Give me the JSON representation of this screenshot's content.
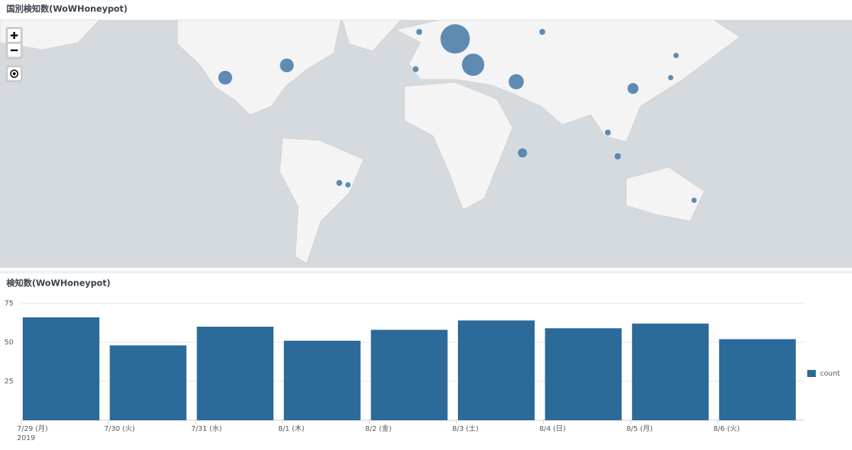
{
  "chart_data": [
    {
      "type": "bubble-map",
      "title": "国別検知数(WoWHoneypot)",
      "lon": [
        19,
        29,
        -1,
        -3,
        67.5,
        53,
        142,
        139,
        118,
        104,
        109.5,
        56.5,
        -45.5,
        -40.7,
        152,
        -109,
        -74.7
      ],
      "lat": [
        51.5,
        41,
        54,
        39,
        54,
        33,
        45,
        35,
        29.6,
        5,
        -9,
        -7,
        -24,
        -25,
        -33,
        35,
        40.7
      ],
      "values": [
        110,
        64,
        5,
        5,
        5,
        30,
        4,
        4,
        16,
        5,
        6,
        12,
        5,
        4,
        4,
        25,
        25
      ],
      "color": "#4f7fab"
    },
    {
      "type": "bar",
      "title": "検知数(WoWHoneypot)",
      "categories": [
        "7/29 (月)",
        "7/30 (火)",
        "7/31 (水)",
        "8/1 (木)",
        "8/2 (金)",
        "8/3 (土)",
        "8/4 (日)",
        "8/5 (月)",
        "8/6 (火)"
      ],
      "year": "2019",
      "series": [
        {
          "name": "count",
          "color": "#2b6a99",
          "values": [
            66,
            48,
            60,
            51,
            58,
            64,
            59,
            62,
            52
          ]
        }
      ],
      "ylim": [
        0,
        75
      ],
      "yticks": [
        25,
        50,
        75
      ],
      "grid": true,
      "legend": "right"
    }
  ]
}
